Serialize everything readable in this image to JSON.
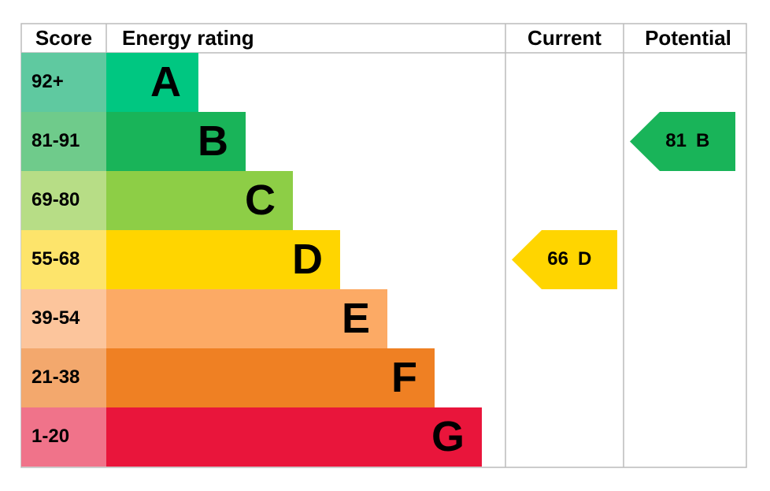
{
  "headers": [
    "Score",
    "Energy rating",
    "Current",
    "Potential"
  ],
  "bands": [
    {
      "score": "92+",
      "letter": "A",
      "color": "#00c781",
      "score_color": "#5fc9a0"
    },
    {
      "score": "81-91",
      "letter": "B",
      "color": "#19b459",
      "score_color": "#6fcb8b"
    },
    {
      "score": "69-80",
      "letter": "C",
      "color": "#8dce46",
      "score_color": "#b7dd86"
    },
    {
      "score": "55-68",
      "letter": "D",
      "color": "#ffd500",
      "score_color": "#fde46b"
    },
    {
      "score": "39-54",
      "letter": "E",
      "color": "#fcaa65",
      "score_color": "#fcc59c"
    },
    {
      "score": "21-38",
      "letter": "F",
      "color": "#ef8023",
      "score_color": "#f3a86d"
    },
    {
      "score": "1-20",
      "letter": "G",
      "color": "#e9153b",
      "score_color": "#f0738a"
    }
  ],
  "current": {
    "value": 66,
    "letter": "D"
  },
  "potential": {
    "value": 81,
    "letter": "B"
  }
}
